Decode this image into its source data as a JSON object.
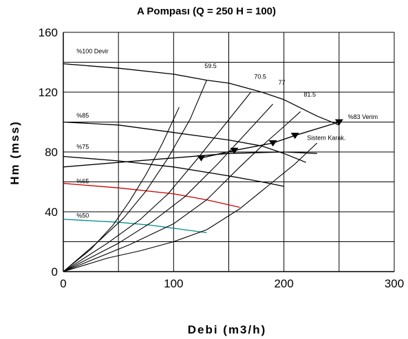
{
  "chart_data": {
    "type": "line",
    "title": "A  Pompası (Q = 250  H = 100)",
    "xlabel": "Debi (m3/h)",
    "ylabel": "Hm (mss)",
    "xlim": [
      0,
      300
    ],
    "ylim": [
      0,
      160
    ],
    "xticks": [
      0,
      100,
      200,
      300
    ],
    "yticks": [
      0,
      40,
      80,
      120,
      160
    ],
    "grid": true,
    "series": [
      {
        "name": "%100 Devir",
        "color": "#000000",
        "points": [
          [
            0,
            139
          ],
          [
            50,
            136
          ],
          [
            100,
            132
          ],
          [
            130,
            128
          ],
          [
            150,
            126
          ],
          [
            180,
            120
          ],
          [
            200,
            115
          ],
          [
            230,
            104
          ],
          [
            250,
            98
          ]
        ]
      },
      {
        "name": "%85",
        "color": "#000000",
        "points": [
          [
            0,
            100
          ],
          [
            50,
            98
          ],
          [
            100,
            93
          ],
          [
            150,
            88
          ],
          [
            180,
            84
          ],
          [
            200,
            79
          ],
          [
            220,
            73
          ]
        ]
      },
      {
        "name": "%75",
        "color": "#000000",
        "points": [
          [
            0,
            77
          ],
          [
            50,
            74
          ],
          [
            100,
            70
          ],
          [
            150,
            64
          ],
          [
            180,
            60
          ],
          [
            200,
            57
          ]
        ]
      },
      {
        "name": "%65",
        "color": "#cc0000",
        "points": [
          [
            0,
            59
          ],
          [
            50,
            56
          ],
          [
            100,
            52
          ],
          [
            130,
            48
          ],
          [
            160,
            43
          ]
        ]
      },
      {
        "name": "%50",
        "color": "#008b8b",
        "points": [
          [
            0,
            35
          ],
          [
            50,
            33
          ],
          [
            80,
            31
          ],
          [
            110,
            28
          ],
          [
            130,
            26
          ]
        ]
      },
      {
        "name": "Sistem Karak.",
        "color": "#000000",
        "points": [
          [
            125,
            76
          ],
          [
            155,
            81
          ],
          [
            190,
            86
          ],
          [
            210,
            91
          ],
          [
            250,
            100
          ]
        ]
      },
      {
        "name": "",
        "color": "#000000",
        "points": [
          [
            0,
            70
          ],
          [
            50,
            73
          ],
          [
            100,
            76
          ],
          [
            150,
            79
          ],
          [
            200,
            80
          ],
          [
            230,
            79
          ]
        ]
      },
      {
        "name": "",
        "color": "#000000",
        "points": [
          [
            0,
            0
          ],
          [
            40,
            9
          ],
          [
            70,
            14
          ],
          [
            100,
            20
          ],
          [
            130,
            28
          ],
          [
            160,
            42
          ],
          [
            190,
            60
          ],
          [
            210,
            72
          ],
          [
            230,
            86
          ]
        ]
      },
      {
        "name": "",
        "color": "#000000",
        "points": [
          [
            0,
            0
          ],
          [
            60,
            18
          ],
          [
            100,
            32
          ],
          [
            130,
            48
          ],
          [
            160,
            70
          ],
          [
            180,
            84
          ],
          [
            200,
            97
          ],
          [
            215,
            107
          ]
        ]
      },
      {
        "name": "",
        "color": "#000000",
        "points": [
          [
            0,
            0
          ],
          [
            50,
            19
          ],
          [
            80,
            33
          ],
          [
            110,
            50
          ],
          [
            140,
            72
          ],
          [
            165,
            92
          ],
          [
            190,
            112
          ]
        ]
      },
      {
        "name": "",
        "color": "#000000",
        "points": [
          [
            0,
            0
          ],
          [
            40,
            19
          ],
          [
            70,
            35
          ],
          [
            95,
            52
          ],
          [
            120,
            74
          ],
          [
            145,
            97
          ],
          [
            170,
            120
          ]
        ]
      },
      {
        "name": "",
        "color": "#000000",
        "points": [
          [
            0,
            0
          ],
          [
            30,
            19
          ],
          [
            55,
            36
          ],
          [
            75,
            54
          ],
          [
            95,
            76
          ],
          [
            115,
            102
          ],
          [
            130,
            128
          ]
        ]
      },
      {
        "name": "",
        "color": "#000000",
        "points": [
          [
            0,
            0
          ],
          [
            25,
            15
          ],
          [
            45,
            31
          ],
          [
            60,
            47
          ],
          [
            75,
            65
          ],
          [
            90,
            86
          ],
          [
            105,
            110
          ]
        ]
      }
    ],
    "markers": [
      [
        125,
        76
      ],
      [
        155,
        81
      ],
      [
        190,
        86
      ],
      [
        210,
        91
      ],
      [
        250,
        100
      ]
    ],
    "annotations": [
      {
        "text": "%100 Devir",
        "x": 12,
        "y": 146
      },
      {
        "text": "59.5",
        "x": 128,
        "y": 136
      },
      {
        "text": "70.5",
        "x": 173,
        "y": 129
      },
      {
        "text": "77",
        "x": 195,
        "y": 125
      },
      {
        "text": "81.5",
        "x": 218,
        "y": 117
      },
      {
        "text": "%83 Verim",
        "x": 258,
        "y": 102
      },
      {
        "text": "Sistem Karak.",
        "x": 221,
        "y": 88
      },
      {
        "text": "%85",
        "x": 12,
        "y": 103
      },
      {
        "text": "%75",
        "x": 12,
        "y": 82
      },
      {
        "text": "%65",
        "x": 12,
        "y": 59
      },
      {
        "text": "%50",
        "x": 12,
        "y": 36
      }
    ]
  }
}
